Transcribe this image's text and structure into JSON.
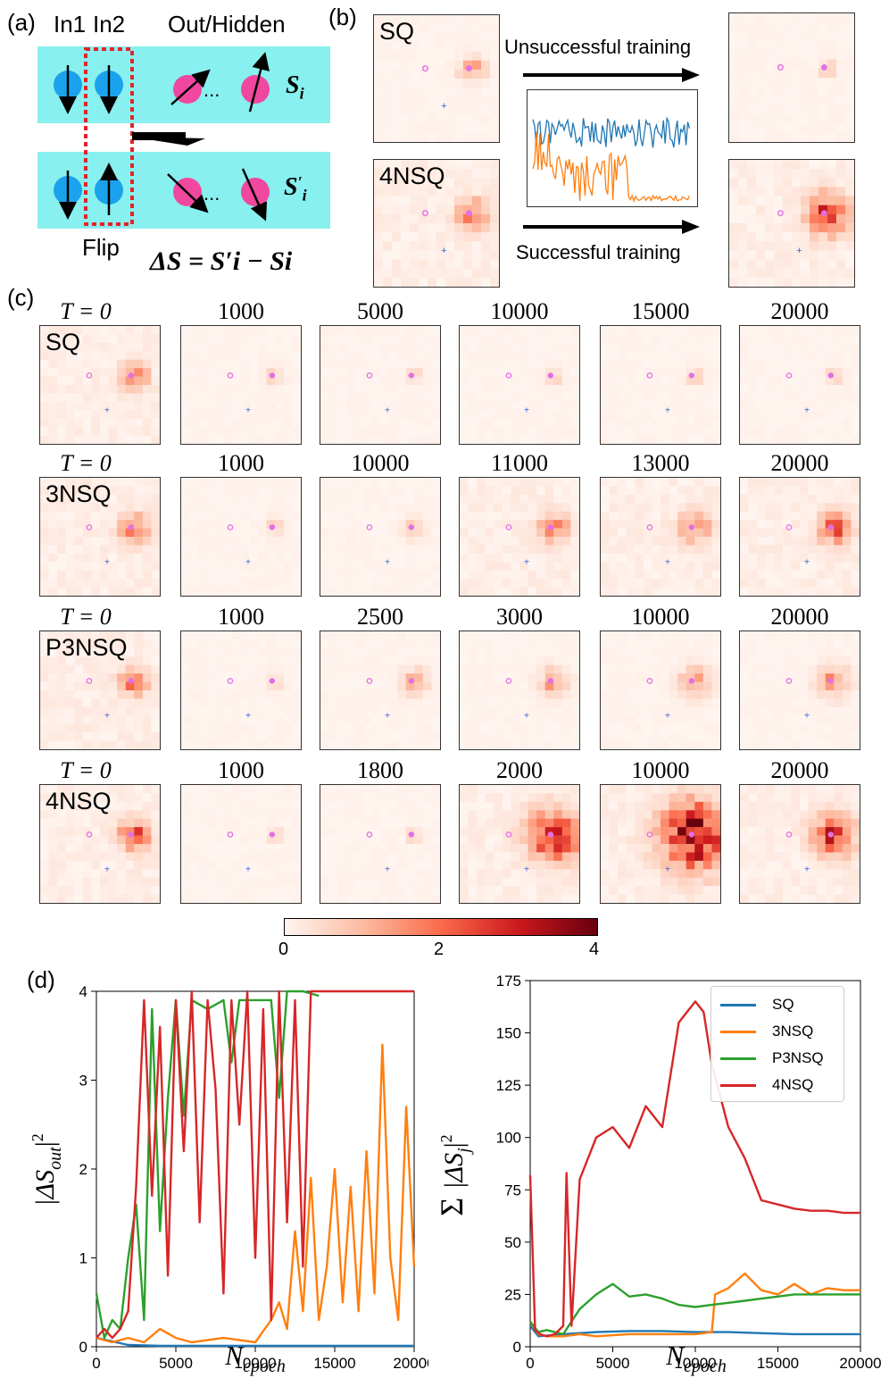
{
  "panel_labels": {
    "a": "(a)",
    "b": "(b)",
    "c": "(c)",
    "d": "(d)"
  },
  "panel_a": {
    "in1": "In1",
    "in2": "In2",
    "out_hidden": "Out/Hidden",
    "ellipsis": "...",
    "spin_before": "S",
    "spin_before_sub": "i",
    "spin_after": "S",
    "spin_after_sub": "i",
    "spin_after_prime": "′",
    "flip": "Flip",
    "delta_formula": "ΔS = S′i − Si",
    "colors": {
      "band": "#88f0ee",
      "input_spin": "#1aa3ec",
      "hidden_spin": "#f0479f",
      "flip_box": "#e3232a"
    }
  },
  "panel_b": {
    "left_top_label": "SQ",
    "left_bottom_label": "4NSQ",
    "unsuccessful": "Unsuccessful training",
    "successful": "Successful training",
    "inset_colors": [
      "#1f77b4",
      "#ff7f0e"
    ]
  },
  "panel_c": {
    "rows": [
      {
        "name": "SQ",
        "titles": [
          "T = 0",
          "1000",
          "5000",
          "10000",
          "15000",
          "20000"
        ],
        "intensity": [
          1.6,
          0.6,
          0.6,
          0.6,
          0.6,
          0.6
        ],
        "spread": [
          1,
          0.6,
          0.6,
          0.6,
          0.6,
          0.6
        ]
      },
      {
        "name": "3NSQ",
        "titles": [
          "T = 0",
          "1000",
          "10000",
          "11000",
          "13000",
          "20000"
        ],
        "intensity": [
          1.8,
          0.6,
          0.8,
          1.6,
          1.8,
          2.0
        ],
        "spread": [
          1.1,
          0.7,
          0.8,
          1.1,
          1.2,
          1.2
        ]
      },
      {
        "name": "P3NSQ",
        "titles": [
          "T = 0",
          "1000",
          "2500",
          "3000",
          "10000",
          "20000"
        ],
        "intensity": [
          1.6,
          0.6,
          1.1,
          1.2,
          1.3,
          1.4
        ],
        "spread": [
          1.1,
          0.6,
          1.0,
          1.1,
          1.2,
          1.2
        ]
      },
      {
        "name": "4NSQ",
        "titles": [
          "T = 0",
          "1000",
          "1800",
          "2000",
          "10000",
          "20000"
        ],
        "intensity": [
          2.0,
          0.6,
          0.6,
          2.8,
          3.4,
          2.4
        ],
        "spread": [
          1.2,
          0.5,
          0.5,
          2.0,
          2.6,
          1.6
        ]
      }
    ],
    "colorbar": {
      "min": 0,
      "max": 4,
      "ticks": [
        "0",
        "2",
        "4"
      ]
    }
  },
  "chart_data": [
    {
      "type": "line",
      "xlabel": "N_epoch",
      "ylabel": "|ΔS_out|^2",
      "xlim": [
        0,
        20000
      ],
      "ylim": [
        0,
        4
      ],
      "xticks": [
        "0",
        "5000",
        "10000",
        "15000",
        "20000"
      ],
      "yticks": [
        "0",
        "1",
        "2",
        "3",
        "4"
      ],
      "series": [
        {
          "name": "SQ",
          "color": "#1f77b4",
          "x": [
            0,
            2000,
            4000,
            6000,
            8000,
            10000,
            12000,
            14000,
            16000,
            18000,
            20000
          ],
          "y": [
            0.1,
            0.02,
            0.01,
            0.01,
            0.01,
            0.01,
            0.01,
            0.01,
            0.01,
            0.01,
            0.01
          ]
        },
        {
          "name": "3NSQ",
          "color": "#ff7f0e",
          "x": [
            0,
            1000,
            2000,
            3000,
            4000,
            5000,
            6000,
            8000,
            10000,
            11000,
            11500,
            12000,
            12500,
            13000,
            13500,
            14000,
            14500,
            15000,
            15500,
            16000,
            16500,
            17000,
            17500,
            18000,
            18500,
            19000,
            19500,
            20000
          ],
          "y": [
            0.1,
            0.05,
            0.1,
            0.05,
            0.2,
            0.1,
            0.05,
            0.1,
            0.05,
            0.3,
            0.5,
            0.2,
            1.3,
            0.4,
            1.9,
            0.3,
            0.9,
            2.0,
            0.5,
            1.8,
            0.4,
            2.2,
            0.6,
            3.4,
            1.0,
            0.3,
            2.7,
            0.9
          ]
        },
        {
          "name": "P3NSQ",
          "color": "#2ca02c",
          "x": [
            0,
            500,
            1000,
            1500,
            2000,
            2500,
            3000,
            3500,
            4000,
            4500,
            5000,
            5500,
            6000,
            7000,
            8000,
            8500,
            9000,
            10000,
            11000,
            11500,
            12000,
            13000,
            14000
          ],
          "y": [
            0.6,
            0.1,
            0.3,
            0.2,
            1.0,
            1.6,
            0.3,
            3.8,
            1.3,
            2.8,
            3.9,
            2.6,
            3.9,
            3.8,
            3.9,
            3.2,
            3.9,
            3.9,
            3.9,
            2.8,
            4.0,
            4.0,
            3.95
          ]
        },
        {
          "name": "4NSQ",
          "color": "#d62728",
          "x": [
            0,
            500,
            1000,
            1500,
            2000,
            2500,
            3000,
            3500,
            4000,
            4500,
            5000,
            5500,
            6000,
            6500,
            7000,
            7500,
            8000,
            8500,
            9000,
            9500,
            10000,
            10500,
            11000,
            11500,
            12000,
            12500,
            13000,
            13500,
            14000,
            15000,
            16000,
            17000,
            18000,
            19000,
            20000
          ],
          "y": [
            0.1,
            0.2,
            0.1,
            0.2,
            0.4,
            1.8,
            3.9,
            1.7,
            3.6,
            0.8,
            3.9,
            2.2,
            4.0,
            1.4,
            3.9,
            2.9,
            0.6,
            3.9,
            2.5,
            4.0,
            1.0,
            3.8,
            0.3,
            4.0,
            1.4,
            3.9,
            0.9,
            4.0,
            4.0,
            4.0,
            4.0,
            4.0,
            4.0,
            4.0,
            4.0
          ]
        }
      ]
    },
    {
      "type": "line",
      "xlabel": "N_epoch",
      "ylabel": "Σ_j |ΔS_j|^2",
      "xlim": [
        0,
        20000
      ],
      "ylim": [
        0,
        175
      ],
      "xticks": [
        "0",
        "5000",
        "10000",
        "15000",
        "20000"
      ],
      "yticks": [
        "0",
        "25",
        "50",
        "75",
        "100",
        "125",
        "150",
        "175"
      ],
      "legend": "top-right",
      "series": [
        {
          "name": "SQ",
          "color": "#1f77b4",
          "x": [
            0,
            500,
            2000,
            4000,
            6000,
            8000,
            10000,
            12000,
            14000,
            16000,
            18000,
            20000
          ],
          "y": [
            10,
            5,
            6,
            7,
            7.5,
            7.5,
            7,
            7,
            6.5,
            6,
            6,
            6
          ]
        },
        {
          "name": "3NSQ",
          "color": "#ff7f0e",
          "x": [
            0,
            500,
            1000,
            2000,
            3000,
            4000,
            6000,
            8000,
            10000,
            11000,
            11200,
            12000,
            13000,
            14000,
            15000,
            16000,
            17000,
            18000,
            19000,
            20000
          ],
          "y": [
            12,
            6,
            5,
            5,
            6,
            5,
            6,
            6,
            6,
            7,
            25,
            28,
            35,
            27,
            25,
            30,
            25,
            28,
            27,
            27
          ]
        },
        {
          "name": "P3NSQ",
          "color": "#2ca02c",
          "x": [
            0,
            500,
            1000,
            2000,
            3000,
            4000,
            5000,
            6000,
            7000,
            8000,
            9000,
            10000,
            11000,
            12000,
            13000,
            14000,
            15000,
            16000,
            17000,
            18000,
            19000,
            20000
          ],
          "y": [
            12,
            7,
            8,
            6,
            18,
            25,
            30,
            24,
            25,
            23,
            20,
            19,
            20,
            21,
            22,
            23,
            24,
            25,
            25,
            25,
            25,
            25
          ]
        },
        {
          "name": "4NSQ",
          "color": "#d62728",
          "x": [
            0,
            300,
            600,
            1000,
            1500,
            2000,
            2200,
            2500,
            3000,
            4000,
            5000,
            6000,
            7000,
            8000,
            9000,
            10000,
            10500,
            11000,
            11500,
            12000,
            13000,
            14000,
            15000,
            16000,
            17000,
            18000,
            19000,
            20000
          ],
          "y": [
            82,
            8,
            6,
            5,
            6,
            10,
            83,
            10,
            80,
            100,
            105,
            95,
            115,
            105,
            155,
            165,
            160,
            135,
            120,
            105,
            90,
            70,
            68,
            66,
            65,
            65,
            64,
            64
          ]
        }
      ]
    }
  ]
}
